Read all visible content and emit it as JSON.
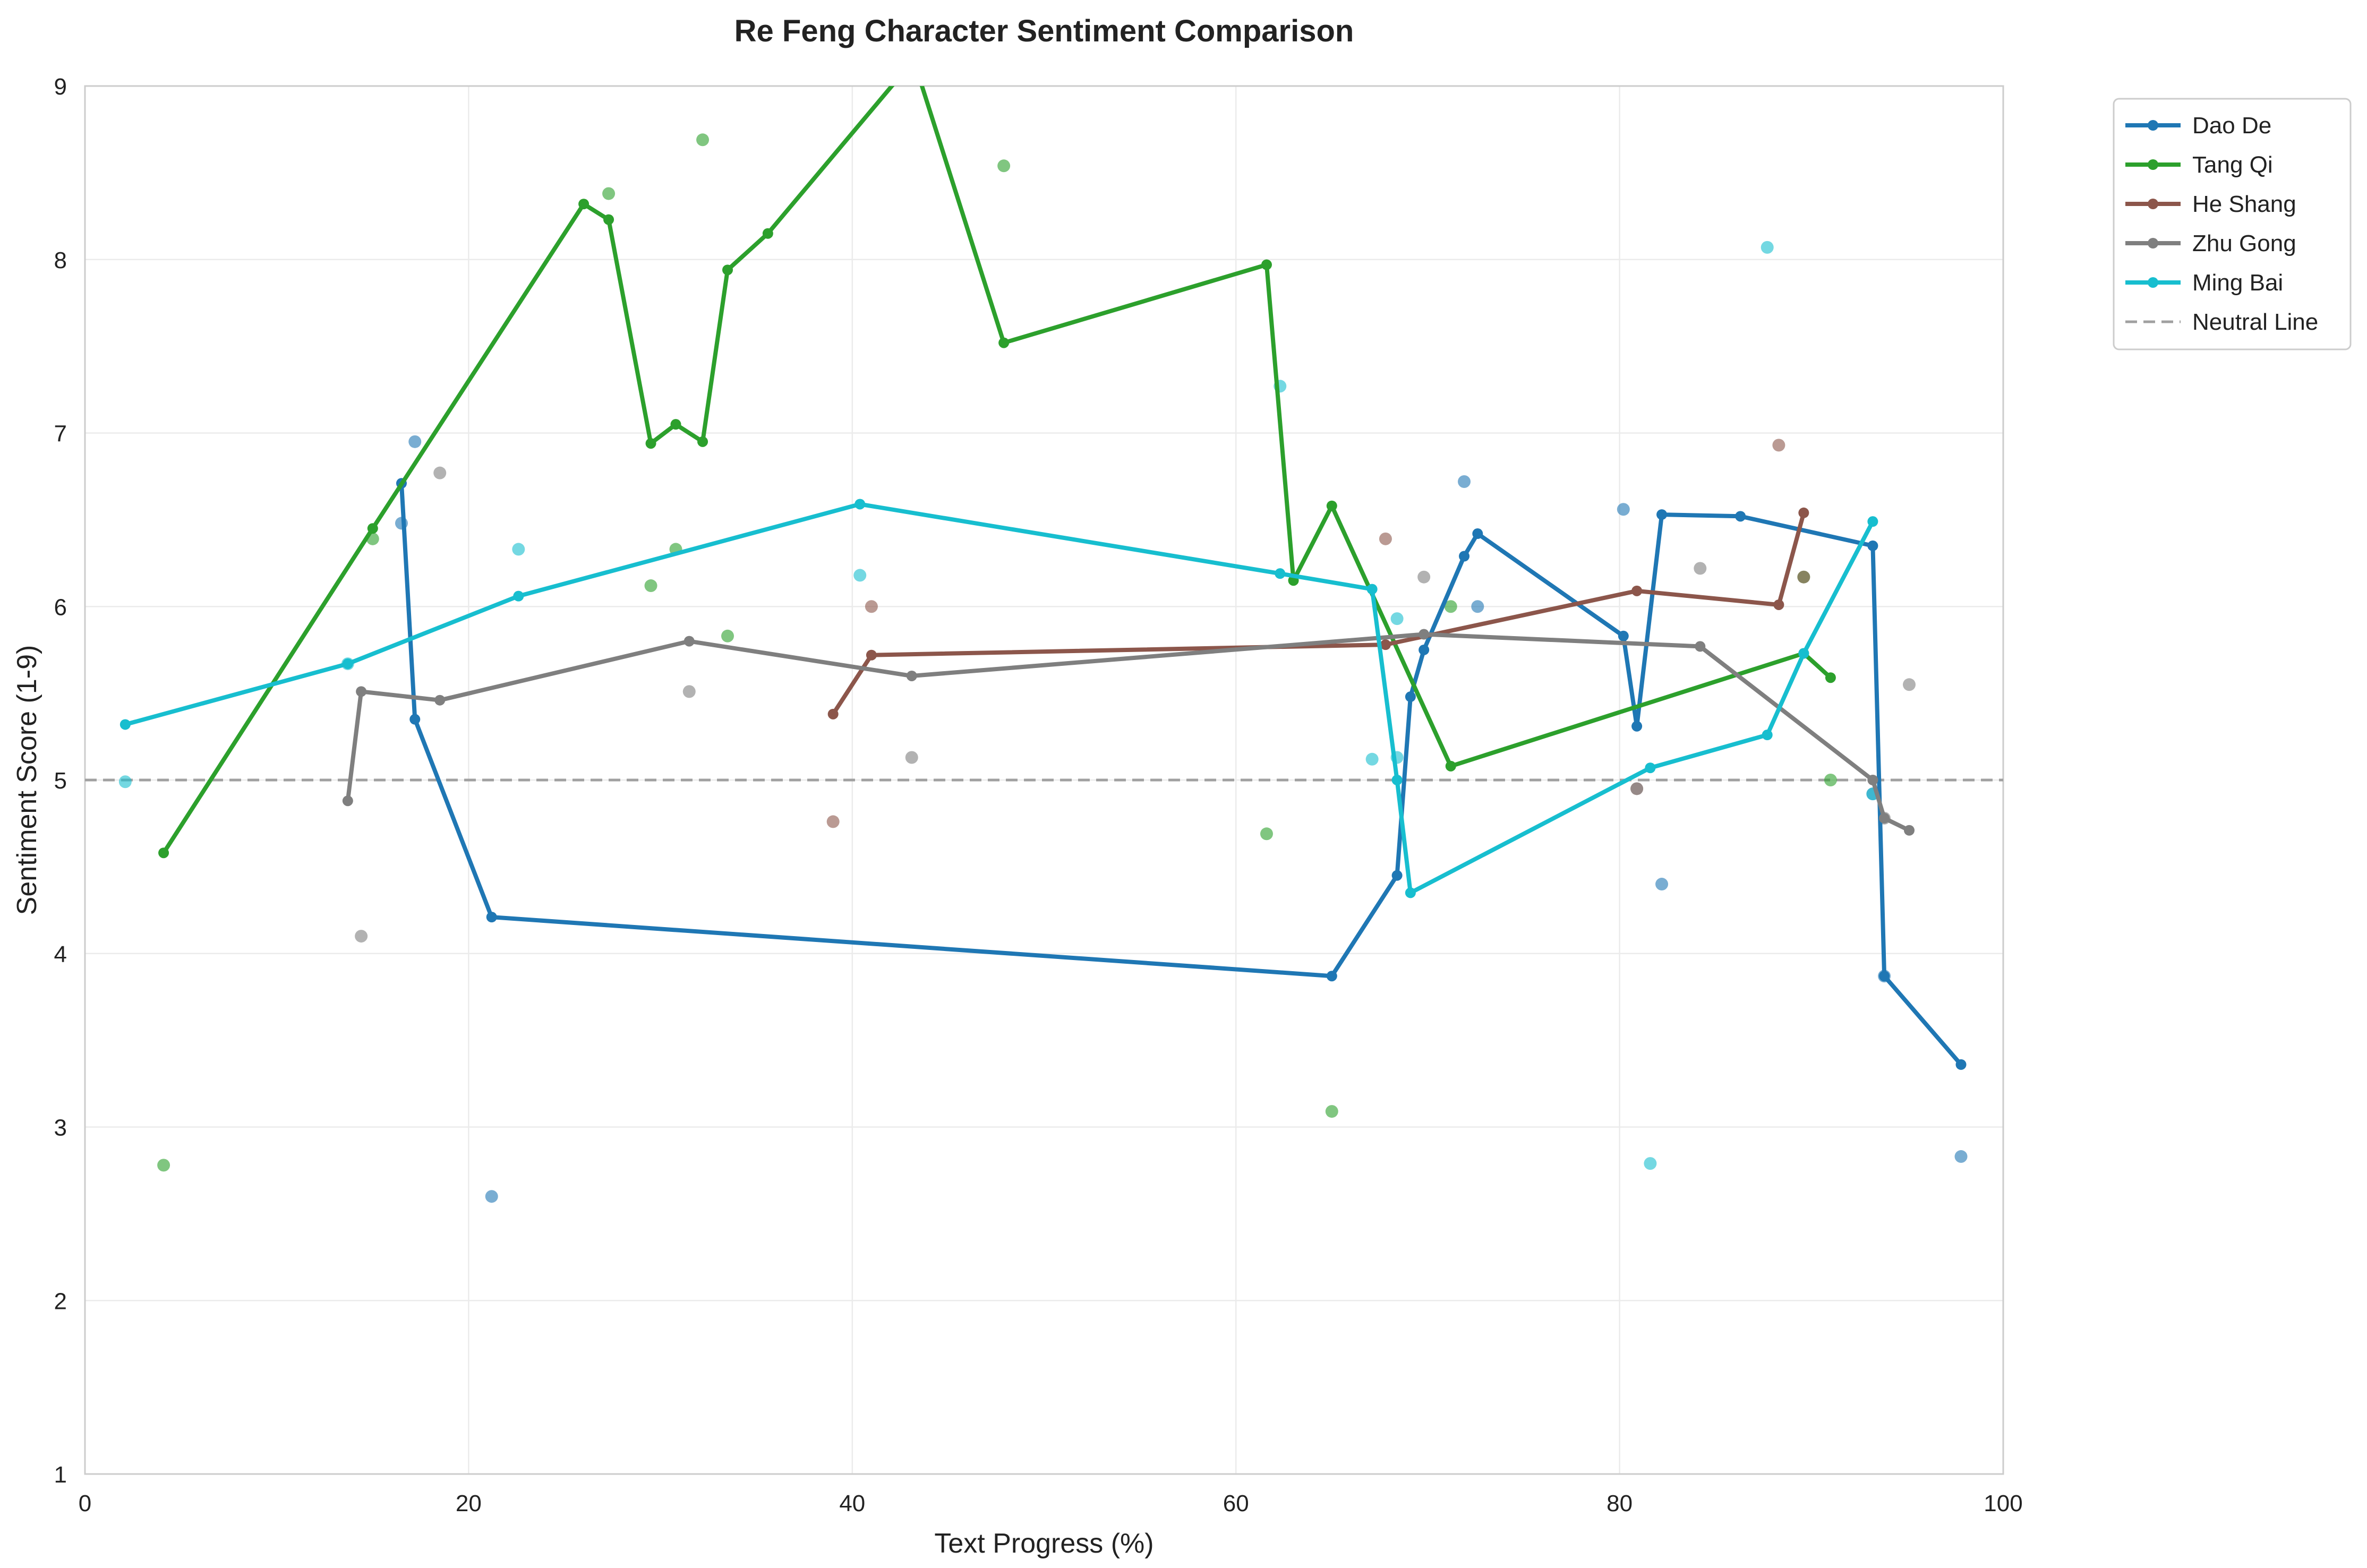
{
  "chart_data": {
    "type": "line",
    "title": "Re Feng Character Sentiment Comparison",
    "xlabel": "Text Progress (%)",
    "ylabel": "Sentiment Score (1-9)",
    "xlim": [
      0,
      100
    ],
    "ylim": [
      1,
      9
    ],
    "xticks": [
      0,
      20,
      40,
      60,
      80,
      100
    ],
    "yticks": [
      1,
      2,
      3,
      4,
      5,
      6,
      7,
      8,
      9
    ],
    "grid": true,
    "legend_position": "outside-top-right",
    "reference_line": {
      "name": "Neutral Line",
      "y": 5,
      "color": "#a0a0a0",
      "style": "dashed"
    },
    "series": [
      {
        "name": "Dao De",
        "color": "#1f77b4",
        "line": [
          [
            16.5,
            6.71
          ],
          [
            17.2,
            5.35
          ],
          [
            21.2,
            4.21
          ],
          [
            65.0,
            3.87
          ],
          [
            68.4,
            4.45
          ],
          [
            69.1,
            5.48
          ],
          [
            69.8,
            5.75
          ],
          [
            71.9,
            6.29
          ],
          [
            72.6,
            6.42
          ],
          [
            80.2,
            5.83
          ],
          [
            80.9,
            5.31
          ],
          [
            82.2,
            6.53
          ],
          [
            86.3,
            6.52
          ],
          [
            93.2,
            6.35
          ],
          [
            93.8,
            3.87
          ],
          [
            97.8,
            3.36
          ]
        ],
        "scatter": [
          [
            17.2,
            6.95
          ],
          [
            16.5,
            6.48
          ],
          [
            21.2,
            2.6
          ],
          [
            71.9,
            6.72
          ],
          [
            72.6,
            6.0
          ],
          [
            80.2,
            6.56
          ],
          [
            82.2,
            4.4
          ],
          [
            93.2,
            4.92
          ],
          [
            93.8,
            3.87
          ],
          [
            97.8,
            2.83
          ]
        ]
      },
      {
        "name": "Tang Qi",
        "color": "#2ca02c",
        "line": [
          [
            4.1,
            4.58
          ],
          [
            15.0,
            6.45
          ],
          [
            26.0,
            8.32
          ],
          [
            27.3,
            8.23
          ],
          [
            29.5,
            6.94
          ],
          [
            30.8,
            7.05
          ],
          [
            32.2,
            6.95
          ],
          [
            33.5,
            7.94
          ],
          [
            35.6,
            8.15
          ],
          [
            43.2,
            9.15
          ],
          [
            47.9,
            7.52
          ],
          [
            61.6,
            7.97
          ],
          [
            63.0,
            6.15
          ],
          [
            65.0,
            6.58
          ],
          [
            71.2,
            5.08
          ],
          [
            89.6,
            5.73
          ],
          [
            91.0,
            5.59
          ]
        ],
        "scatter": [
          [
            4.1,
            2.78
          ],
          [
            15.0,
            6.39
          ],
          [
            27.3,
            8.38
          ],
          [
            29.5,
            6.12
          ],
          [
            30.8,
            6.33
          ],
          [
            32.2,
            8.69
          ],
          [
            33.5,
            5.83
          ],
          [
            47.9,
            8.54
          ],
          [
            61.6,
            4.69
          ],
          [
            65.0,
            3.09
          ],
          [
            71.2,
            6.0
          ],
          [
            89.6,
            6.17
          ],
          [
            91.0,
            5.0
          ]
        ]
      },
      {
        "name": "He Shang",
        "color": "#8c564b",
        "line": [
          [
            39.0,
            5.38
          ],
          [
            41.0,
            5.72
          ],
          [
            67.8,
            5.78
          ],
          [
            80.9,
            6.09
          ],
          [
            88.3,
            6.01
          ],
          [
            89.6,
            6.54
          ]
        ],
        "scatter": [
          [
            39.0,
            4.76
          ],
          [
            41.0,
            6.0
          ],
          [
            67.8,
            6.39
          ],
          [
            80.9,
            4.95
          ],
          [
            88.3,
            6.93
          ],
          [
            89.6,
            6.17
          ]
        ]
      },
      {
        "name": "Zhu Gong",
        "color": "#7f7f7f",
        "line": [
          [
            13.7,
            4.88
          ],
          [
            14.4,
            5.51
          ],
          [
            18.5,
            5.46
          ],
          [
            31.5,
            5.8
          ],
          [
            43.1,
            5.6
          ],
          [
            69.8,
            5.84
          ],
          [
            84.2,
            5.77
          ],
          [
            93.2,
            5.0
          ],
          [
            93.8,
            4.78
          ],
          [
            95.1,
            4.71
          ]
        ],
        "scatter": [
          [
            14.4,
            4.1
          ],
          [
            18.5,
            6.77
          ],
          [
            31.5,
            5.51
          ],
          [
            43.1,
            5.13
          ],
          [
            69.8,
            6.17
          ],
          [
            80.9,
            4.95
          ],
          [
            84.2,
            6.22
          ],
          [
            93.8,
            4.78
          ],
          [
            95.1,
            5.55
          ]
        ]
      },
      {
        "name": "Ming Bai",
        "color": "#17becf",
        "line": [
          [
            2.1,
            5.32
          ],
          [
            13.7,
            5.67
          ],
          [
            22.6,
            6.06
          ],
          [
            40.4,
            6.59
          ],
          [
            62.3,
            6.19
          ],
          [
            67.1,
            6.1
          ],
          [
            68.4,
            5.0
          ],
          [
            69.1,
            4.35
          ],
          [
            81.6,
            5.07
          ],
          [
            87.7,
            5.26
          ],
          [
            89.6,
            5.73
          ],
          [
            93.2,
            6.49
          ]
        ],
        "scatter": [
          [
            2.1,
            4.99
          ],
          [
            13.7,
            5.67
          ],
          [
            22.6,
            6.33
          ],
          [
            40.4,
            6.18
          ],
          [
            62.3,
            7.27
          ],
          [
            67.1,
            5.12
          ],
          [
            68.4,
            5.93
          ],
          [
            68.4,
            5.13
          ],
          [
            81.6,
            2.79
          ],
          [
            87.7,
            8.07
          ],
          [
            93.2,
            4.92
          ]
        ]
      }
    ]
  }
}
